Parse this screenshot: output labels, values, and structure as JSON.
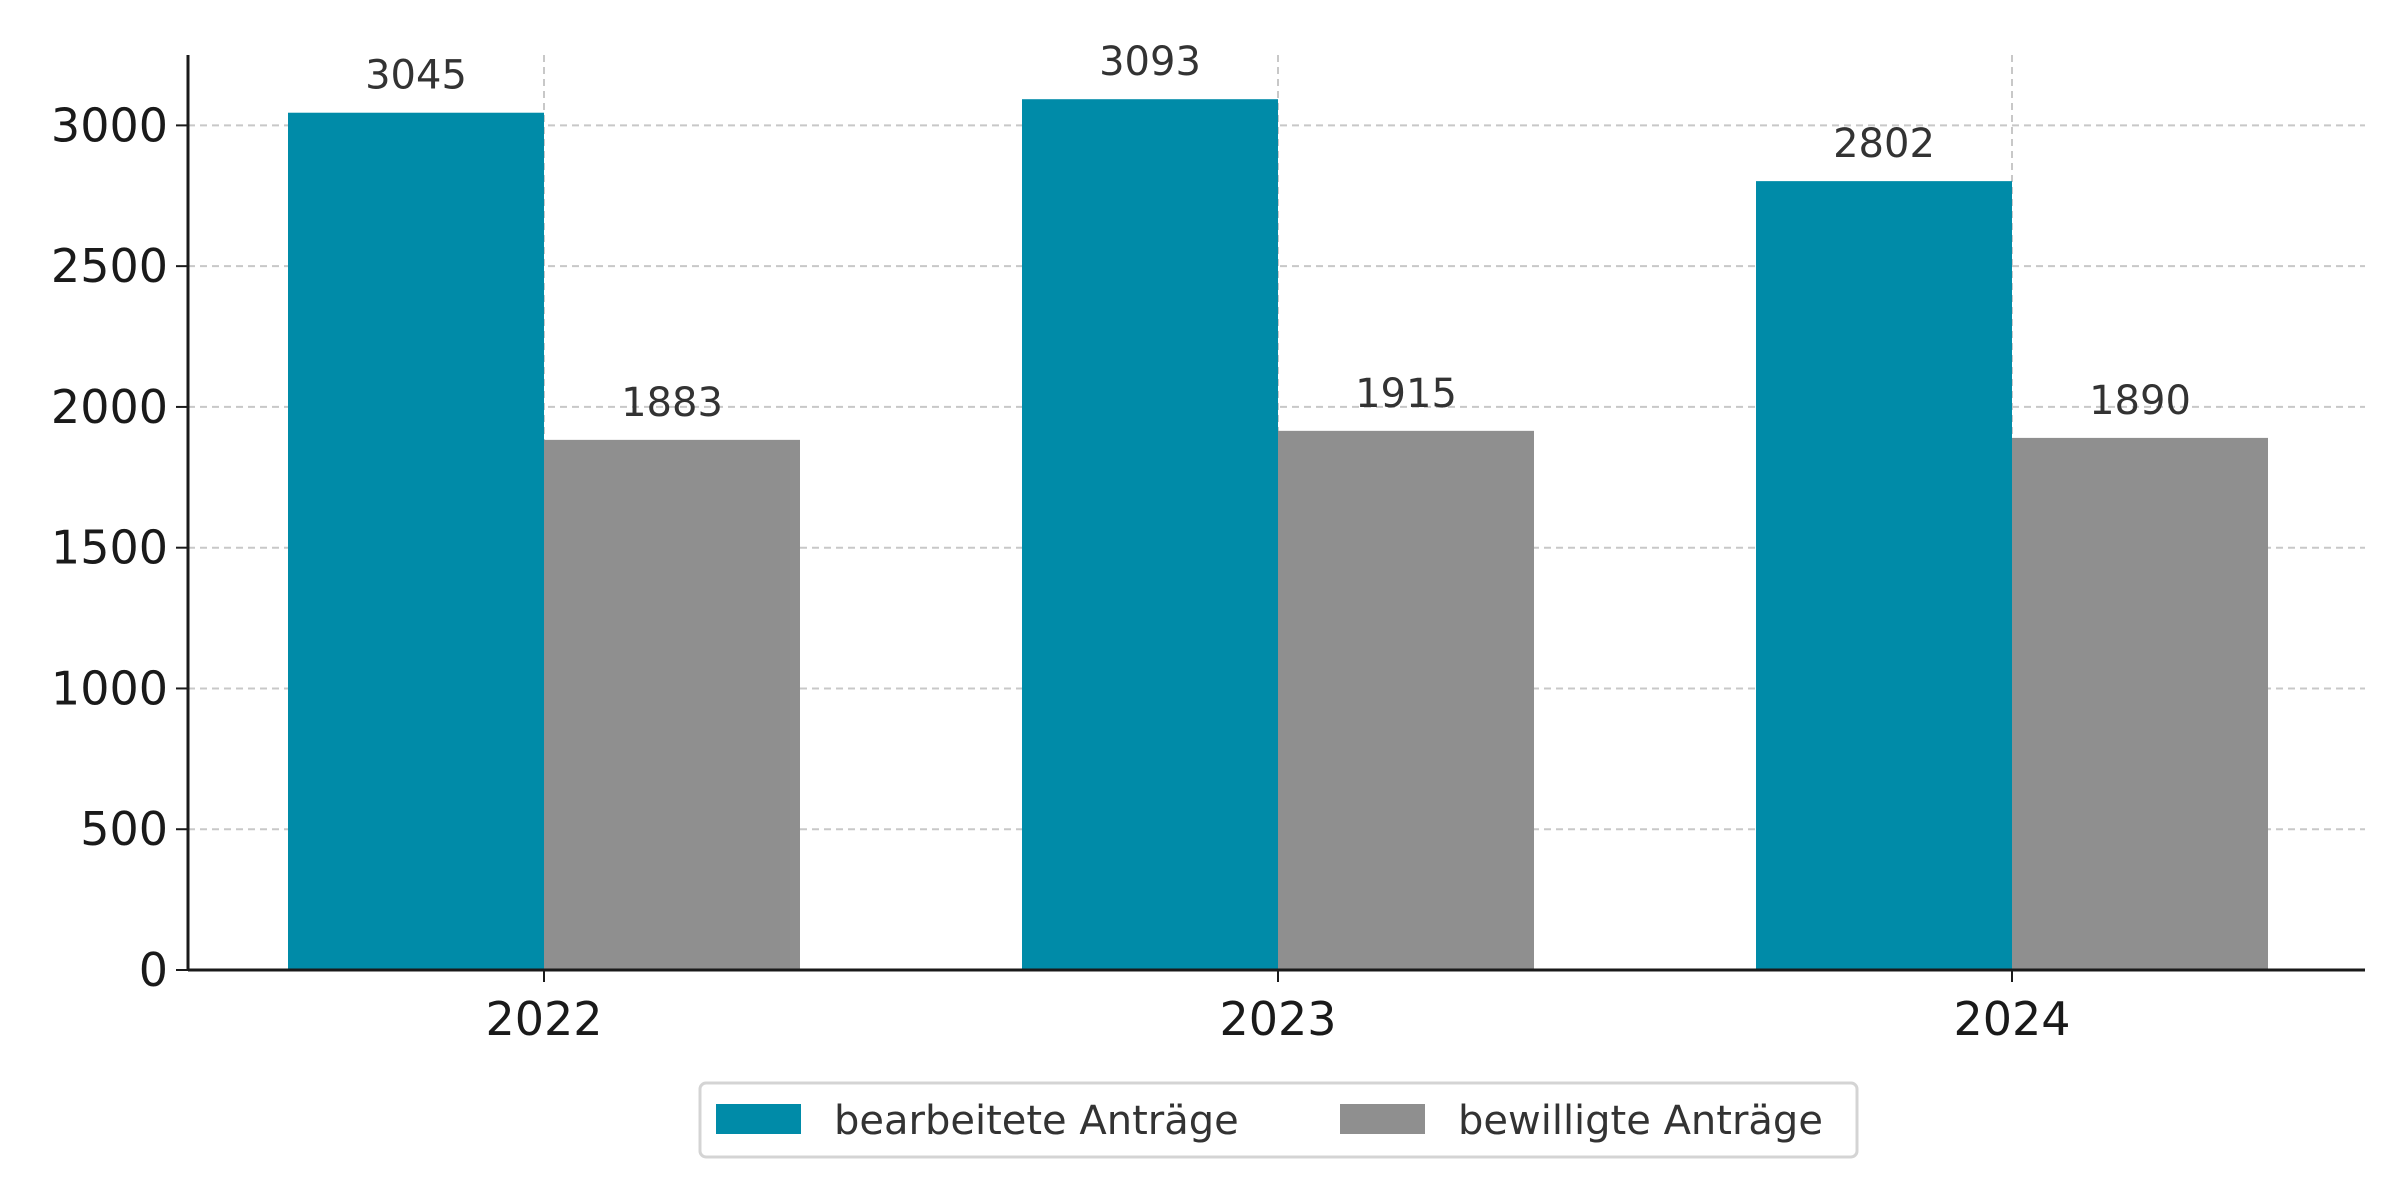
{
  "chart_data": {
    "type": "bar",
    "title": "",
    "xlabel": "",
    "ylabel": "",
    "categories": [
      "2022",
      "2023",
      "2024"
    ],
    "series": [
      {
        "name": "bearbeitete Anträge",
        "values": [
          3045,
          3093,
          2802
        ],
        "color": "#008ba8"
      },
      {
        "name": "bewilligte Anträge",
        "values": [
          1883,
          1915,
          1890
        ],
        "color": "#8f8f8f"
      }
    ],
    "ylim": [
      0,
      3250
    ],
    "yticks": [
      0,
      500,
      1000,
      1500,
      2000,
      2500,
      3000
    ],
    "grid": true,
    "legend_position": "bottom-center"
  }
}
